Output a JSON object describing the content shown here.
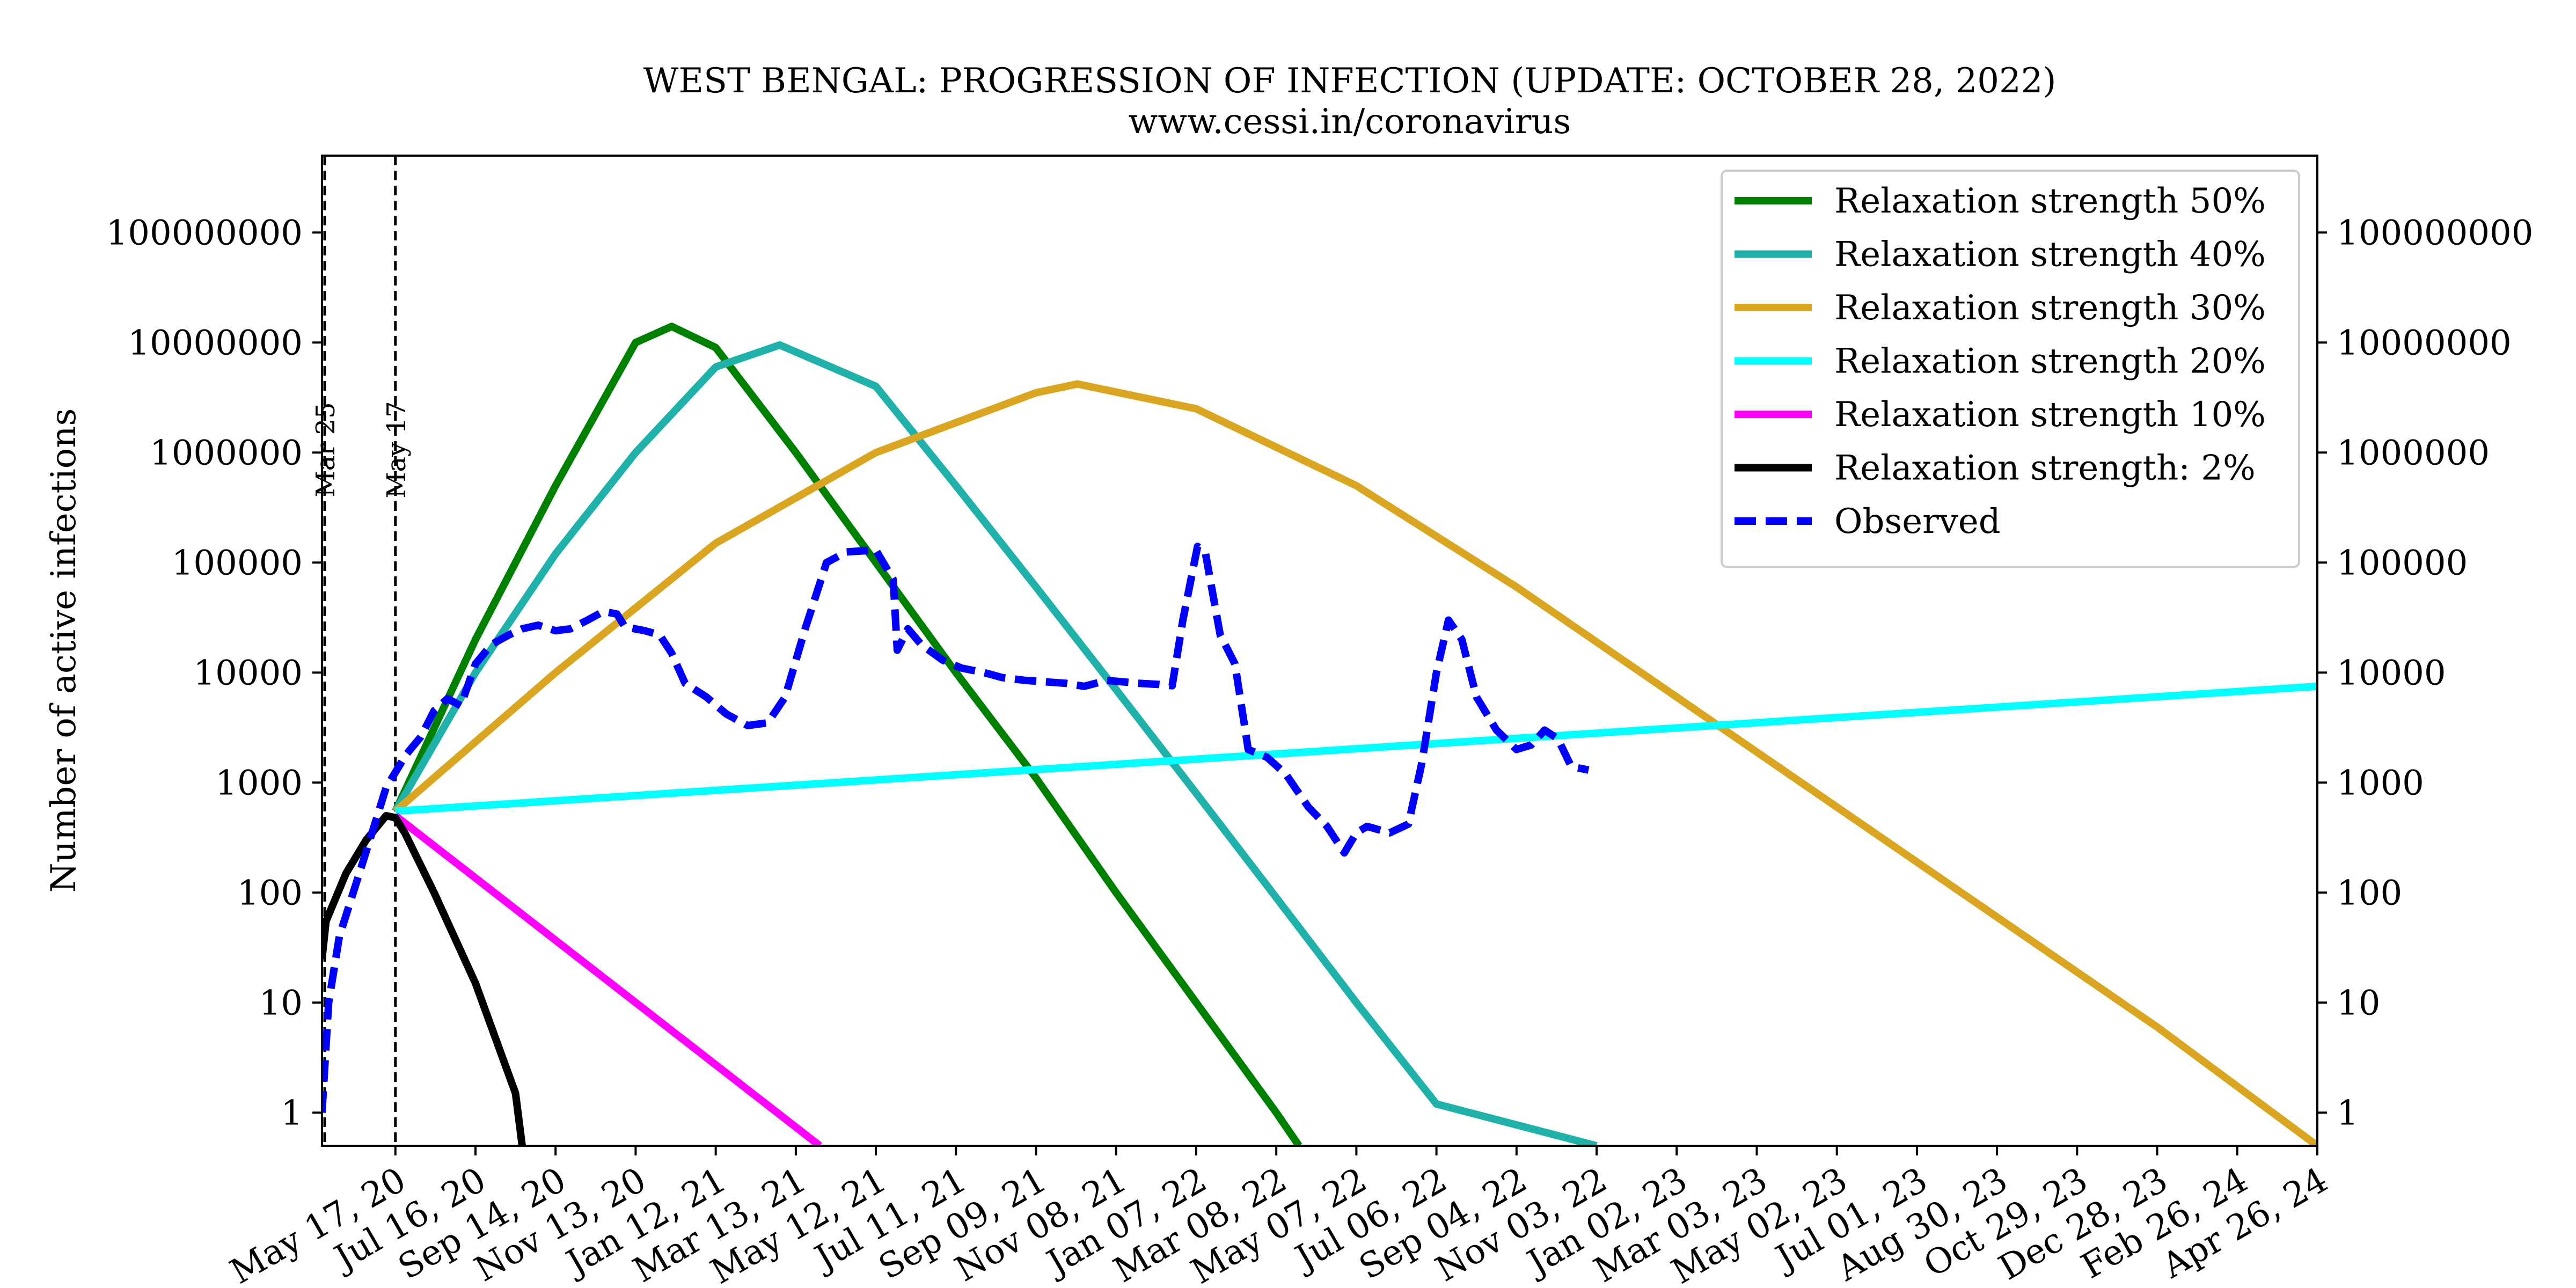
{
  "title": "WEST BENGAL: PROGRESSION OF INFECTION (UPDATE: OCTOBER 28, 2022)",
  "subtitle": "www.cessi.in/coronavirus",
  "chart_data": {
    "type": "line",
    "title": "WEST BENGAL: PROGRESSION OF INFECTION (UPDATE: OCTOBER 28, 2022)",
    "subtitle": "www.cessi.in/coronavirus",
    "xlabel": "",
    "ylabel": "Number of active infections",
    "y_scale": "log",
    "ylim": [
      0.5,
      500000000
    ],
    "xlim": [
      "2020-03-23",
      "2024-04-26"
    ],
    "x_tick_labels": [
      {
        "date": "2020-05-17",
        "label": "May 17, 20"
      },
      {
        "date": "2020-07-16",
        "label": "Jul 16, 20"
      },
      {
        "date": "2020-09-14",
        "label": "Sep 14, 20"
      },
      {
        "date": "2020-11-13",
        "label": "Nov 13, 20"
      },
      {
        "date": "2021-01-12",
        "label": "Jan 12, 21"
      },
      {
        "date": "2021-03-13",
        "label": "Mar 13, 21"
      },
      {
        "date": "2021-05-12",
        "label": "May 12, 21"
      },
      {
        "date": "2021-07-11",
        "label": "Jul 11, 21"
      },
      {
        "date": "2021-09-09",
        "label": "Sep 09, 21"
      },
      {
        "date": "2021-11-08",
        "label": "Nov 08, 21"
      },
      {
        "date": "2022-01-07",
        "label": "Jan 07, 22"
      },
      {
        "date": "2022-03-08",
        "label": "Mar 08, 22"
      },
      {
        "date": "2022-05-07",
        "label": "May 07, 22"
      },
      {
        "date": "2022-07-06",
        "label": "Jul 06, 22"
      },
      {
        "date": "2022-09-04",
        "label": "Sep 04, 22"
      },
      {
        "date": "2022-11-03",
        "label": "Nov 03, 22"
      },
      {
        "date": "2023-01-02",
        "label": "Jan 02, 23"
      },
      {
        "date": "2023-03-03",
        "label": "Mar 03, 23"
      },
      {
        "date": "2023-05-02",
        "label": "May 02, 23"
      },
      {
        "date": "2023-07-01",
        "label": "Jul 01, 23"
      },
      {
        "date": "2023-08-30",
        "label": "Aug 30, 23"
      },
      {
        "date": "2023-10-29",
        "label": "Oct 29, 23"
      },
      {
        "date": "2023-12-28",
        "label": "Dec 28, 23"
      },
      {
        "date": "2024-02-26",
        "label": "Feb 26, 24"
      },
      {
        "date": "2024-04-26",
        "label": "Apr 26, 24"
      }
    ],
    "y_ticks": [
      1,
      10,
      100,
      1000,
      10000,
      100000,
      1000000,
      10000000,
      100000000
    ],
    "y_tick_labels": [
      "1",
      "10",
      "100",
      "1000",
      "10000",
      "100000",
      "1000000",
      "10000000",
      "100000000"
    ],
    "vlines": [
      {
        "date": "2020-03-25",
        "label": "Mar 25"
      },
      {
        "date": "2020-05-17",
        "label": "May 17"
      }
    ],
    "legend_position": "top-right",
    "grid": false,
    "series": [
      {
        "name": "Relaxation strength 50%",
        "color": "#008000",
        "style": "solid",
        "points": [
          [
            "2020-05-17",
            550
          ],
          [
            "2020-07-16",
            20000
          ],
          [
            "2020-09-14",
            500000
          ],
          [
            "2020-11-13",
            10000000
          ],
          [
            "2020-12-10",
            14000000
          ],
          [
            "2021-01-12",
            9000000
          ],
          [
            "2021-03-13",
            1000000
          ],
          [
            "2021-05-12",
            100000
          ],
          [
            "2021-07-11",
            10000
          ],
          [
            "2021-09-09",
            1100
          ],
          [
            "2021-11-08",
            100
          ],
          [
            "2022-01-07",
            10
          ],
          [
            "2022-03-08",
            1
          ],
          [
            "2022-03-25",
            0.5
          ]
        ]
      },
      {
        "name": "Relaxation strength 40%",
        "color": "#20B2AA",
        "style": "solid",
        "points": [
          [
            "2020-05-17",
            550
          ],
          [
            "2020-07-16",
            10000
          ],
          [
            "2020-09-14",
            120000
          ],
          [
            "2020-11-13",
            1000000
          ],
          [
            "2021-01-12",
            6000000
          ],
          [
            "2021-03-01",
            9500000
          ],
          [
            "2021-05-12",
            4000000
          ],
          [
            "2021-07-11",
            500000
          ],
          [
            "2021-09-09",
            60000
          ],
          [
            "2021-11-08",
            7000
          ],
          [
            "2022-01-07",
            800
          ],
          [
            "2022-03-08",
            90
          ],
          [
            "2022-05-07",
            10
          ],
          [
            "2022-07-06",
            1.2
          ],
          [
            "2022-11-03",
            0.5
          ]
        ]
      },
      {
        "name": "Relaxation strength 30%",
        "color": "#DAA520",
        "style": "solid",
        "points": [
          [
            "2020-05-17",
            550
          ],
          [
            "2020-09-14",
            10000
          ],
          [
            "2021-01-12",
            150000
          ],
          [
            "2021-05-12",
            1000000
          ],
          [
            "2021-09-09",
            3500000
          ],
          [
            "2021-10-10",
            4200000
          ],
          [
            "2022-01-07",
            2500000
          ],
          [
            "2022-05-07",
            500000
          ],
          [
            "2022-09-04",
            60000
          ],
          [
            "2023-01-02",
            6000
          ],
          [
            "2023-05-02",
            600
          ],
          [
            "2023-08-30",
            60
          ],
          [
            "2023-12-28",
            6
          ],
          [
            "2024-04-26",
            0.5
          ]
        ]
      },
      {
        "name": "Relaxation strength 20%",
        "color": "#00FFFF",
        "style": "solid",
        "points": [
          [
            "2020-05-17",
            550
          ],
          [
            "2024-04-26",
            7500
          ]
        ]
      },
      {
        "name": "Relaxation strength 10%",
        "color": "#FF00FF",
        "style": "solid",
        "points": [
          [
            "2020-05-17",
            500
          ],
          [
            "2021-03-31",
            0.5
          ]
        ]
      },
      {
        "name": "Relaxation strength: 2%",
        "color": "#000000",
        "style": "solid",
        "points": [
          [
            "2020-03-23",
            25
          ],
          [
            "2020-03-26",
            55
          ],
          [
            "2020-04-10",
            150
          ],
          [
            "2020-04-25",
            300
          ],
          [
            "2020-05-10",
            500
          ],
          [
            "2020-05-17",
            480
          ],
          [
            "2020-05-24",
            350
          ],
          [
            "2020-06-15",
            100
          ],
          [
            "2020-07-16",
            15
          ],
          [
            "2020-08-15",
            1.5
          ],
          [
            "2020-08-20",
            0.5
          ]
        ]
      },
      {
        "name": "Observed",
        "color": "#0000FF",
        "style": "dashed",
        "points": [
          [
            "2020-03-23",
            1
          ],
          [
            "2020-03-28",
            10
          ],
          [
            "2020-04-05",
            40
          ],
          [
            "2020-04-20",
            150
          ],
          [
            "2020-05-01",
            400
          ],
          [
            "2020-05-10",
            900
          ],
          [
            "2020-05-25",
            1800
          ],
          [
            "2020-06-05",
            2600
          ],
          [
            "2020-06-15",
            4500
          ],
          [
            "2020-06-25",
            5800
          ],
          [
            "2020-07-05",
            5000
          ],
          [
            "2020-07-16",
            12000
          ],
          [
            "2020-07-28",
            18000
          ],
          [
            "2020-08-10",
            22000
          ],
          [
            "2020-08-20",
            25000
          ],
          [
            "2020-09-01",
            27000
          ],
          [
            "2020-09-14",
            24000
          ],
          [
            "2020-09-25",
            25000
          ],
          [
            "2020-10-08",
            30000
          ],
          [
            "2020-10-20",
            36000
          ],
          [
            "2020-10-30",
            34000
          ],
          [
            "2020-11-05",
            26000
          ],
          [
            "2020-11-20",
            24000
          ],
          [
            "2020-12-01",
            22000
          ],
          [
            "2020-12-10",
            15000
          ],
          [
            "2020-12-20",
            8000
          ],
          [
            "2021-01-05",
            6000
          ],
          [
            "2021-01-20",
            4200
          ],
          [
            "2021-02-05",
            3300
          ],
          [
            "2021-02-20",
            3500
          ],
          [
            "2021-03-05",
            6000
          ],
          [
            "2021-03-20",
            25000
          ],
          [
            "2021-04-05",
            100000
          ],
          [
            "2021-04-20",
            125000
          ],
          [
            "2021-05-12",
            130000
          ],
          [
            "2021-05-25",
            70000
          ],
          [
            "2021-05-28",
            16000
          ],
          [
            "2021-06-05",
            25000
          ],
          [
            "2021-06-15",
            18000
          ],
          [
            "2021-07-01",
            13000
          ],
          [
            "2021-07-15",
            11000
          ],
          [
            "2021-08-01",
            10000
          ],
          [
            "2021-08-15",
            9000
          ],
          [
            "2021-09-01",
            8500
          ],
          [
            "2021-10-01",
            8000
          ],
          [
            "2021-10-15",
            7500
          ],
          [
            "2021-11-01",
            8500
          ],
          [
            "2021-11-25",
            8000
          ],
          [
            "2021-12-10",
            7800
          ],
          [
            "2021-12-20",
            7600
          ],
          [
            "2021-12-28",
            30000
          ],
          [
            "2022-01-08",
            140000
          ],
          [
            "2022-01-14",
            120000
          ],
          [
            "2022-01-25",
            22000
          ],
          [
            "2022-02-05",
            12000
          ],
          [
            "2022-02-15",
            2000
          ],
          [
            "2022-03-01",
            1700
          ],
          [
            "2022-03-15",
            1200
          ],
          [
            "2022-04-01",
            600
          ],
          [
            "2022-04-15",
            400
          ],
          [
            "2022-04-28",
            230
          ],
          [
            "2022-05-07",
            350
          ],
          [
            "2022-05-15",
            400
          ],
          [
            "2022-06-01",
            350
          ],
          [
            "2022-06-15",
            420
          ],
          [
            "2022-06-25",
            1500
          ],
          [
            "2022-07-06",
            10000
          ],
          [
            "2022-07-15",
            30000
          ],
          [
            "2022-07-25",
            20000
          ],
          [
            "2022-08-05",
            6000
          ],
          [
            "2022-08-20",
            3000
          ],
          [
            "2022-09-04",
            2000
          ],
          [
            "2022-09-15",
            2200
          ],
          [
            "2022-09-25",
            3000
          ],
          [
            "2022-10-05",
            2500
          ],
          [
            "2022-10-15",
            1400
          ],
          [
            "2022-10-28",
            1300
          ]
        ]
      }
    ]
  }
}
